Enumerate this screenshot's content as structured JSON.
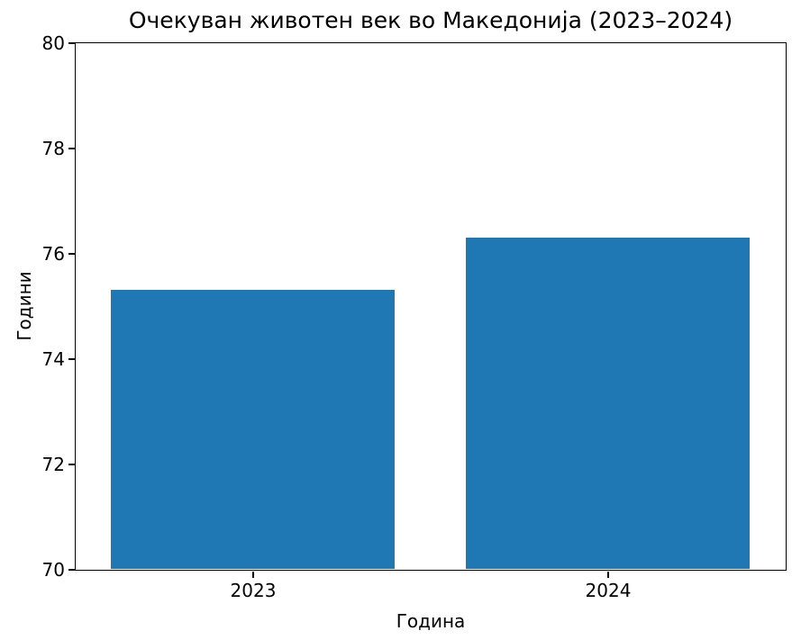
{
  "chart_data": {
    "type": "bar",
    "title": "Очекуван животен век во Македонија (2023–2024)",
    "categories": [
      "2023",
      "2024"
    ],
    "values": [
      75.3,
      76.3
    ],
    "xlabel": "Година",
    "ylabel": "Години",
    "ylim": [
      70,
      80
    ],
    "yticks": [
      70,
      72,
      74,
      76,
      78,
      80
    ],
    "bar_color": "#1f77b4",
    "bar_width_fraction": 0.8,
    "background_color": "#ffffff",
    "spine_color": "#000000",
    "text_color": "#000000",
    "grid": false,
    "legend_position": "none"
  }
}
